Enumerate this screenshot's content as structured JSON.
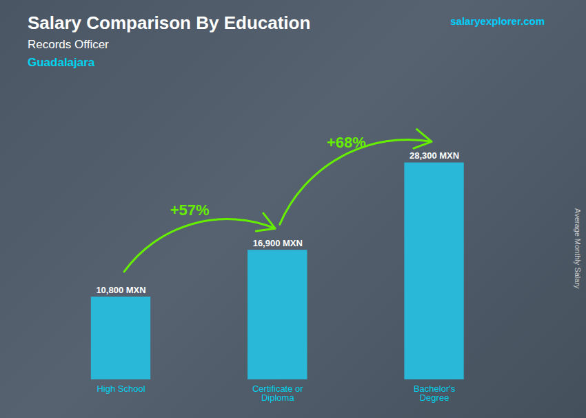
{
  "chart_data": {
    "type": "bar",
    "title": "Salary Comparison By Education",
    "subtitle": [
      "Records Officer",
      "Guadalajara"
    ],
    "ylabel": "Average Monthly Salary",
    "categories": [
      "High School",
      "Certificate or\nDiploma",
      "Bachelor's\nDegree"
    ],
    "values": [
      10800,
      16900,
      28300
    ],
    "value_labels": [
      "10,800 MXN",
      "16,900 MXN",
      "28,300 MXN"
    ],
    "data_labels": true,
    "color": "#29b8d8",
    "ylim": [
      0,
      36000
    ],
    "tick_labels": "x",
    "grid": false,
    "annotations": [
      {
        "text": "+57%",
        "from": "High School",
        "to": "Certificate or\nDiploma",
        "color": "#66ee00"
      },
      {
        "text": "+68%",
        "from": "Certificate or\nDiploma",
        "to": "Bachelor's\nDegree",
        "color": "#66ee00"
      },
      {
        "text": "salaryexplorer.com"
      }
    ]
  }
}
